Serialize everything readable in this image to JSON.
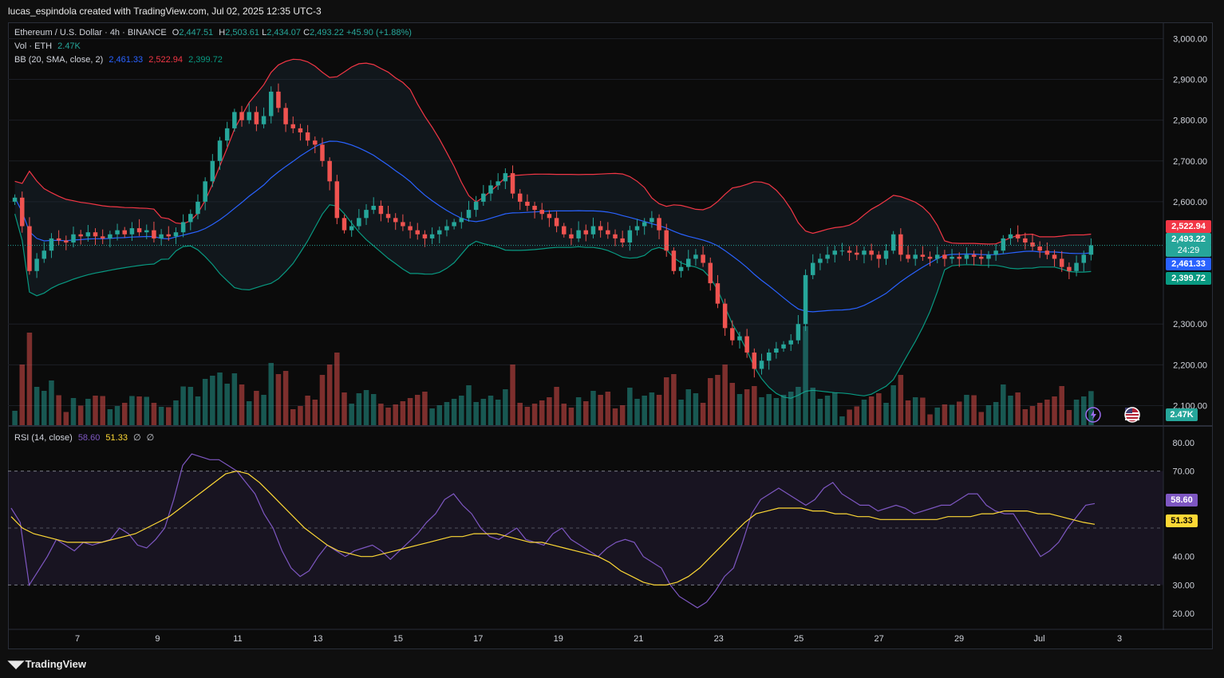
{
  "header": {
    "credit": "lucas_espindola created with TradingView.com, Jul 02, 2025 12:35 UTC-3"
  },
  "legend": {
    "symbol": "Ethereum / U.S. Dollar · 4h · BINANCE",
    "ohlc": {
      "o_label": "O",
      "o": "2,447.51",
      "h_label": "H",
      "h": "2,503.61",
      "l_label": "L",
      "l": "2,434.07",
      "c_label": "C",
      "c": "2,493.22",
      "change": "+45.90 (+1.88%)"
    },
    "vol_label": "Vol · ETH",
    "vol_value": "2.47K",
    "bb_label": "BB (20, SMA, close, 2)",
    "bb_basis": "2,461.33",
    "bb_upper": "2,522.94",
    "bb_lower": "2,399.72",
    "rsi_label": "RSI (14, close)",
    "rsi_value": "58.60",
    "rsi_ma": "51.33",
    "rsi_extra1": "∅",
    "rsi_extra2": "∅"
  },
  "price_axis": {
    "ticks": [
      "3,000.00",
      "2,900.00",
      "2,800.00",
      "2,700.00",
      "2,600.00",
      "2,300.00",
      "2,200.00",
      "2,100.00"
    ]
  },
  "price_tags": {
    "upper": "2,522.94",
    "last": "2,493.22",
    "countdown": "24:29",
    "basis": "2,461.33",
    "lower": "2,399.72",
    "volume": "2.47K"
  },
  "rsi_axis": {
    "ticks": [
      "80.00",
      "70.00",
      "40.00",
      "30.00",
      "20.00"
    ],
    "rsi_tag": "58.60",
    "ma_tag": "51.33"
  },
  "time_axis": {
    "labels": [
      "7",
      "9",
      "11",
      "13",
      "15",
      "17",
      "19",
      "21",
      "23",
      "25",
      "27",
      "29",
      "Jul",
      "3"
    ]
  },
  "footer": {
    "brand": "TradingView"
  },
  "colors": {
    "up": "#26a69a",
    "down": "#ef5350",
    "bb_basis": "#2962ff",
    "bb_upper": "#f23645",
    "bb_lower": "#089981",
    "rsi": "#7e57c2",
    "rsi_ma": "#fdd835"
  },
  "chart_data": [
    {
      "type": "candlestick",
      "title": "Ethereum / U.S. Dollar · 4h · BINANCE",
      "ylim": [
        2050,
        3040
      ],
      "x_labels": [
        "7",
        "9",
        "11",
        "13",
        "15",
        "17",
        "19",
        "21",
        "23",
        "25",
        "27",
        "29",
        "Jul",
        "3"
      ],
      "close": [
        2610,
        2540,
        2430,
        2460,
        2480,
        2510,
        2505,
        2500,
        2520,
        2515,
        2525,
        2515,
        2510,
        2520,
        2530,
        2520,
        2535,
        2525,
        2530,
        2510,
        2520,
        2515,
        2525,
        2550,
        2570,
        2600,
        2650,
        2700,
        2750,
        2780,
        2820,
        2800,
        2820,
        2790,
        2810,
        2870,
        2830,
        2790,
        2780,
        2770,
        2750,
        2740,
        2700,
        2650,
        2560,
        2530,
        2540,
        2560,
        2580,
        2590,
        2570,
        2560,
        2550,
        2540,
        2530,
        2520,
        2510,
        2520,
        2530,
        2540,
        2550,
        2560,
        2580,
        2600,
        2620,
        2640,
        2650,
        2670,
        2620,
        2600,
        2590,
        2580,
        2570,
        2560,
        2540,
        2520,
        2510,
        2530,
        2520,
        2540,
        2530,
        2520,
        2510,
        2500,
        2530,
        2540,
        2550,
        2560,
        2530,
        2480,
        2430,
        2440,
        2460,
        2470,
        2450,
        2400,
        2350,
        2290,
        2260,
        2270,
        2230,
        2190,
        2210,
        2230,
        2240,
        2250,
        2260,
        2300,
        2420,
        2450,
        2460,
        2470,
        2480,
        2480,
        2475,
        2470,
        2480,
        2470,
        2460,
        2480,
        2520,
        2470,
        2460,
        2470,
        2465,
        2460,
        2470,
        2460,
        2465,
        2460,
        2470,
        2465,
        2460,
        2470,
        2480,
        2510,
        2520,
        2510,
        2500,
        2490,
        2480,
        2470,
        2460,
        2440,
        2430,
        2450,
        2470,
        2493
      ],
      "bb": {
        "upper_range": [
          2510,
          2930
        ],
        "basis_range": [
          2310,
          2740
        ],
        "lower_range": [
          2130,
          2640
        ],
        "upper_last": 2522.94,
        "basis_last": 2461.33,
        "lower_last": 2399.72
      },
      "volume_last": "2.47K"
    },
    {
      "type": "line",
      "title": "RSI (14, close)",
      "ylim": [
        15,
        85
      ],
      "bands": [
        30,
        70
      ],
      "series": [
        {
          "name": "RSI",
          "values": [
            57,
            52,
            30,
            35,
            40,
            46,
            44,
            42,
            45,
            44,
            45,
            46,
            50,
            48,
            44,
            43,
            46,
            50,
            60,
            72,
            76,
            75,
            74,
            74,
            72,
            70,
            66,
            62,
            55,
            50,
            42,
            36,
            33,
            35,
            40,
            44,
            42,
            40,
            42,
            43,
            44,
            42,
            39,
            42,
            45,
            48,
            52,
            55,
            60,
            62,
            58,
            55,
            50,
            47,
            46,
            48,
            50,
            46,
            45,
            44,
            48,
            50,
            46,
            44,
            42,
            40,
            43,
            45,
            46,
            45,
            40,
            38,
            36,
            30,
            26,
            24,
            22,
            24,
            28,
            33,
            36,
            45,
            55,
            60,
            62,
            64,
            62,
            60,
            58,
            60,
            64,
            66,
            62,
            60,
            58,
            58,
            56,
            57,
            58,
            57,
            55,
            56,
            57,
            58,
            58,
            60,
            62,
            62,
            58,
            56,
            55,
            55,
            50,
            45,
            40,
            42,
            45,
            50,
            54,
            58,
            58.6
          ]
        },
        {
          "name": "MA",
          "values": [
            54,
            50,
            48,
            47,
            46,
            45,
            45,
            45,
            45,
            46,
            47,
            48,
            50,
            52,
            54,
            57,
            60,
            63,
            66,
            69,
            70,
            69,
            66,
            62,
            58,
            54,
            50,
            47,
            44,
            42,
            41,
            40,
            40,
            41,
            42,
            43,
            44,
            45,
            46,
            47,
            47,
            48,
            48,
            48,
            47,
            46,
            45,
            45,
            44,
            43,
            42,
            41,
            40,
            38,
            35,
            33,
            31,
            30,
            30,
            31,
            33,
            36,
            40,
            44,
            48,
            52,
            55,
            56,
            57,
            57,
            57,
            56,
            56,
            55,
            55,
            54,
            54,
            53,
            53,
            53,
            53,
            53,
            53,
            54,
            54,
            54,
            55,
            55,
            56,
            56,
            56,
            55,
            55,
            54,
            53,
            52,
            51.33
          ]
        }
      ]
    }
  ]
}
